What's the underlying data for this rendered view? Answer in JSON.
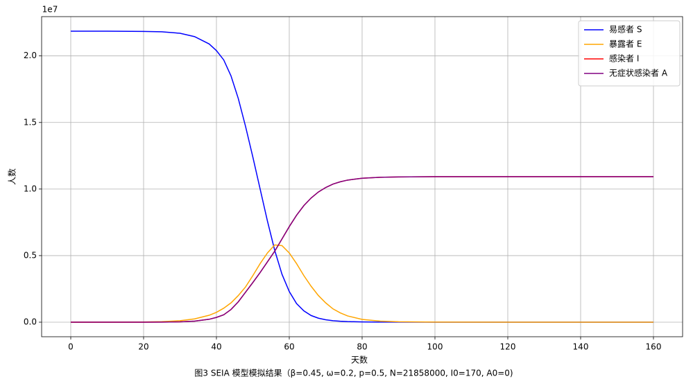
{
  "chart_data": {
    "type": "line",
    "caption": "图3 SEIA 模型模拟结果（β=0.45, ω=0.2, p=0.5, N=21858000, I0=170, A0=0)",
    "xlabel": "天数",
    "ylabel": "人数",
    "y_offset_label": "1e7",
    "x": [
      0,
      10,
      20,
      25,
      30,
      34,
      38,
      40,
      42,
      44,
      46,
      48,
      50,
      52,
      54,
      56,
      58,
      60,
      62,
      64,
      66,
      68,
      70,
      72,
      74,
      76,
      80,
      85,
      90,
      100,
      120,
      140,
      160
    ],
    "series": [
      {
        "name": "易感者 S",
        "color": "#0000ff",
        "values": [
          21858000,
          21855000,
          21840000,
          21810000,
          21700000,
          21450000,
          20900000,
          20400000,
          19700000,
          18500000,
          16800000,
          14700000,
          12400000,
          10000000,
          7600000,
          5400000,
          3600000,
          2300000,
          1400000,
          850000,
          500000,
          300000,
          180000,
          110000,
          70000,
          45000,
          20000,
          8000,
          4000,
          1500,
          500,
          300,
          200
        ]
      },
      {
        "name": "暴露者 E",
        "color": "#ffa500",
        "values": [
          0,
          2000,
          15000,
          40000,
          110000,
          250000,
          520000,
          740000,
          1050000,
          1450000,
          2000000,
          2650000,
          3500000,
          4400000,
          5200000,
          5800000,
          5750000,
          5200000,
          4400000,
          3500000,
          2700000,
          2000000,
          1450000,
          1000000,
          700000,
          470000,
          210000,
          80000,
          30000,
          4000,
          100,
          5,
          0
        ]
      },
      {
        "name": "感染者 I",
        "color": "#ff0000",
        "values": [
          0,
          500,
          1500,
          4000,
          24000,
          79000,
          219000,
          359000,
          554000,
          954000,
          1529000,
          2254000,
          2979000,
          3729000,
          4529000,
          5329000,
          6254000,
          7179000,
          8029000,
          8754000,
          9329000,
          9779000,
          10114000,
          10374000,
          10544000,
          10671500,
          10814000,
          10885000,
          10912000,
          10926250,
          10928700,
          10928850,
          10928900
        ]
      },
      {
        "name": "无症状感染者 A",
        "color": "#800080",
        "values": [
          0,
          500,
          1500,
          4000,
          24000,
          79000,
          219000,
          359000,
          554000,
          954000,
          1529000,
          2254000,
          2979000,
          3729000,
          4529000,
          5329000,
          6254000,
          7179000,
          8029000,
          8754000,
          9329000,
          9779000,
          10114000,
          10374000,
          10544000,
          10671500,
          10814000,
          10885000,
          10912000,
          10926250,
          10928700,
          10928850,
          10928900
        ]
      }
    ],
    "xlim": [
      -8,
      168
    ],
    "xticks": [
      0,
      20,
      40,
      60,
      80,
      100,
      120,
      140,
      160
    ],
    "ylim": [
      -1092900,
      22950900
    ],
    "yticks": [
      {
        "value": 0,
        "label": "0.0"
      },
      {
        "value": 5000000,
        "label": "0.5"
      },
      {
        "value": 10000000,
        "label": "1.0"
      },
      {
        "value": 15000000,
        "label": "1.5"
      },
      {
        "value": 20000000,
        "label": "2.0"
      }
    ],
    "grid": true,
    "legend": "upper right"
  }
}
